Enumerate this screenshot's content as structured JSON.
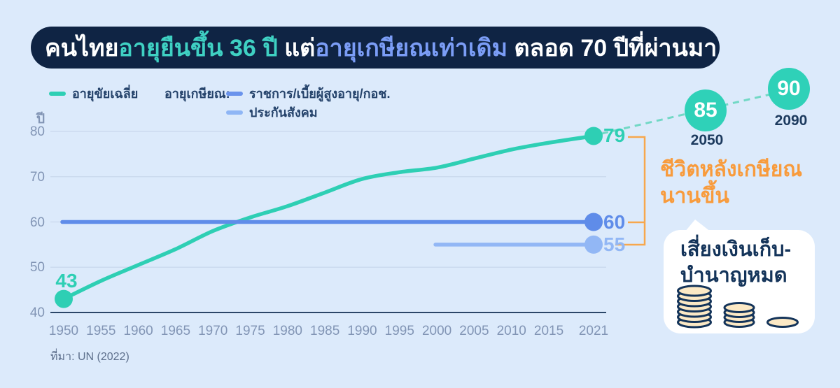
{
  "title": {
    "seg1": "คนไทย",
    "seg2": "อายุยืนขึ้น 36 ปี",
    "seg3": " แต่",
    "seg4": "อายุเกษียณเท่าเดิม",
    "seg5": " ตลอด 70 ปีที่ผ่านมา"
  },
  "legend": {
    "life_expectancy": "อายุขัยเฉลี่ย",
    "retirement_header": "อายุเกษียณ:",
    "government": "ราชการ/เบี้ยผู้สูงอายุ/กอช.",
    "social_security": "ประกันสังคม"
  },
  "annotations": {
    "post_retirement_line1": "ชีวิตหลังเกษียณ",
    "post_retirement_line2": "นานขึ้น",
    "bubble_line1": "เสี่ยงเงินเก็บ-",
    "bubble_line2": "บำนาญหมด"
  },
  "source": "ที่มา: UN (2022)",
  "colors": {
    "background": "#dceafb",
    "title_bar": "#0f2444",
    "title_teal": "#3fd1c3",
    "title_blue": "#7b9df6",
    "life_line": "#2ecfb4",
    "government_line": "#5f8ce9",
    "social_line": "#92b7f5",
    "orange": "#f89b3c",
    "navy_text": "#14345a",
    "coin_fill": "#fce9c5"
  },
  "chart_data": {
    "type": "line",
    "ylabel": "ปี",
    "x_ticks": [
      "1950",
      "1955",
      "1960",
      "1965",
      "1970",
      "1975",
      "1980",
      "1985",
      "1990",
      "1995",
      "2000",
      "2005",
      "2010",
      "2015",
      "2021"
    ],
    "y_ticks": [
      40,
      50,
      60,
      70,
      80
    ],
    "xlim": [
      1950,
      2021
    ],
    "ylim": [
      40,
      80
    ],
    "grid": true,
    "legend_position": "top",
    "series": [
      {
        "name": "อายุขัยเฉลี่ย",
        "color": "#2ecfb4",
        "x": [
          1950,
          1955,
          1960,
          1965,
          1970,
          1975,
          1980,
          1985,
          1990,
          1995,
          2000,
          2005,
          2010,
          2015,
          2021
        ],
        "values": [
          43,
          47,
          50.5,
          54,
          58,
          61,
          63.5,
          66.5,
          69.5,
          71,
          72,
          74,
          76,
          77.5,
          79
        ],
        "start_label": 43,
        "end_label": 79
      },
      {
        "name": "ราชการ/เบี้ยผู้สูงอายุ/กอช.",
        "color": "#5f8ce9",
        "x": [
          1950,
          2021
        ],
        "values": [
          60,
          60
        ],
        "end_label": 60
      },
      {
        "name": "ประกันสังคม",
        "color": "#92b7f5",
        "x": [
          2000,
          2021
        ],
        "values": [
          55,
          55
        ],
        "end_label": 55
      }
    ],
    "projection": {
      "x": [
        2050,
        2090
      ],
      "values": [
        85,
        90
      ]
    }
  }
}
